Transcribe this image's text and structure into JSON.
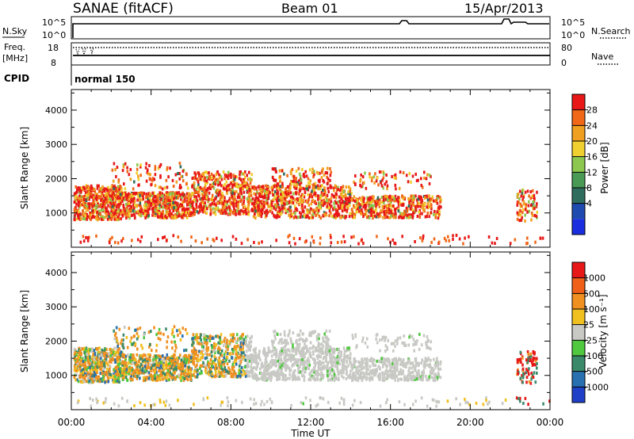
{
  "header": {
    "site": "SANAE (fitACF)",
    "beam": "Beam 01",
    "date": "15/Apr/2013"
  },
  "sky_panel": {
    "label": "N.Sky",
    "left_ticks": [
      "10^5",
      "10^0"
    ],
    "right_ticks": [
      "10^5",
      "10^0"
    ],
    "right_label": "N.Search"
  },
  "freq_panel": {
    "label_line1": "Freq.",
    "label_line2": "[MHz]",
    "left_ticks": [
      "18",
      "8"
    ],
    "right_ticks": [
      "80",
      "0"
    ],
    "right_label": "Nave"
  },
  "cpid_panel": {
    "label": "CPID",
    "mode": "normal 150"
  },
  "colors": {
    "grey": "#c8c8c4"
  },
  "chart_data": [
    {
      "type": "heatmap",
      "title": "",
      "xlabel": "Time UT",
      "ylabel": "Slant Range [km]",
      "x_ticks": [
        "00:00",
        "04:00",
        "08:00",
        "12:00",
        "16:00",
        "20:00",
        "00:00"
      ],
      "y_ticks": [
        "1000",
        "2000",
        "3000",
        "4000"
      ],
      "xlim_hours": [
        0,
        24
      ],
      "ylim_km": [
        0,
        4600
      ],
      "colorbar": {
        "label": "Power [dB]",
        "ticks": [
          "28",
          "24",
          "20",
          "16",
          "12",
          "8",
          "4"
        ],
        "colors": [
          "#1a2ee0",
          "#1f4ab0",
          "#2f6e5e",
          "#4a9a55",
          "#8cc850",
          "#f0d030",
          "#f0a020",
          "#f06818",
          "#e81818"
        ]
      }
    },
    {
      "type": "heatmap",
      "title": "",
      "xlabel": "Time UT",
      "ylabel": "Slant Range [km]",
      "x_ticks": [
        "00:00",
        "04:00",
        "08:00",
        "12:00",
        "16:00",
        "20:00",
        "00:00"
      ],
      "y_ticks": [
        "1000",
        "2000",
        "3000",
        "4000"
      ],
      "xlim_hours": [
        0,
        24
      ],
      "ylim_km": [
        0,
        4600
      ],
      "colorbar": {
        "label": "Velocity [m s⁻¹]",
        "ticks": [
          "1000",
          "500",
          "100",
          "25",
          "-25",
          "-100",
          "-500",
          "-1000"
        ],
        "colors": [
          "#2040c8",
          "#2870b0",
          "#3a8a6a",
          "#50c840",
          "#c8c8c4",
          "#f0c020",
          "#f09020",
          "#f06018",
          "#e81818"
        ]
      }
    }
  ]
}
